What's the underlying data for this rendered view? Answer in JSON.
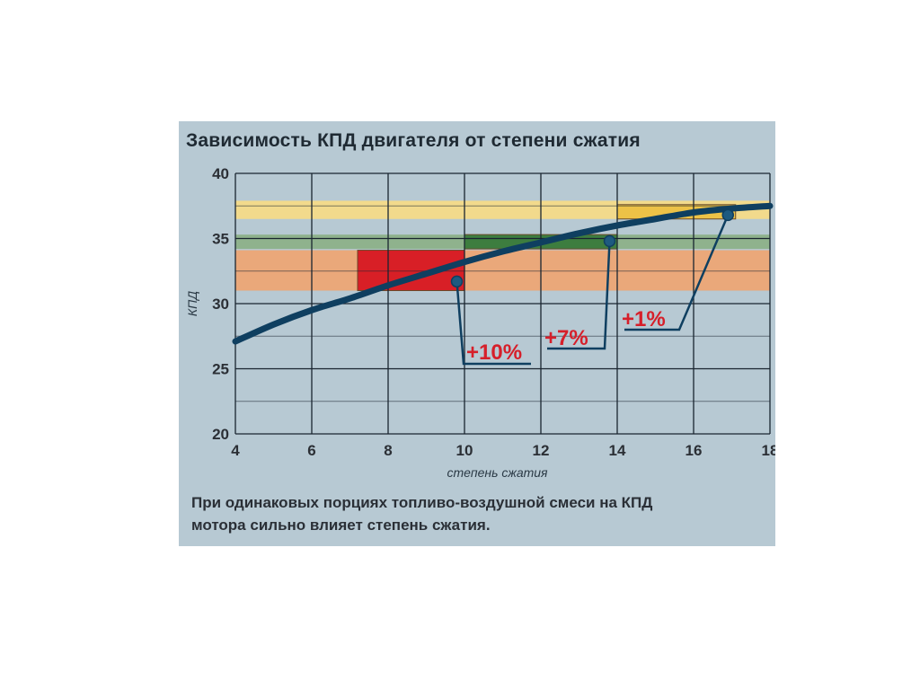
{
  "chart_data": {
    "type": "line",
    "title": "Зависимость КПД двигателя от степени сжатия",
    "xlabel": "степень сжатия",
    "ylabel": "КПД",
    "xlim": [
      4,
      18
    ],
    "ylim": [
      20,
      40
    ],
    "x_ticks": [
      "4",
      "6",
      "8",
      "10",
      "12",
      "14",
      "16",
      "18"
    ],
    "y_ticks": [
      "20",
      "25",
      "30",
      "35",
      "40"
    ],
    "grid": true,
    "curve": {
      "x": [
        4,
        5,
        6,
        7,
        8,
        9,
        10,
        11,
        12,
        13,
        14,
        15,
        16,
        17,
        18
      ],
      "y": [
        27.1,
        28.4,
        29.5,
        30.4,
        31.4,
        32.3,
        33.2,
        34.0,
        34.7,
        35.4,
        36.0,
        36.5,
        37.0,
        37.3,
        37.5
      ]
    },
    "bands": [
      {
        "name": "yellow",
        "y": [
          36.5,
          37.9
        ],
        "color": "#f2da8c"
      },
      {
        "name": "green",
        "y": [
          34.2,
          35.3
        ],
        "color": "#8fb28d"
      },
      {
        "name": "orange",
        "y": [
          31.0,
          34.1
        ],
        "color": "#eaa87a"
      }
    ],
    "highlights": [
      {
        "x": [
          7.2,
          10.0
        ],
        "y": [
          31.0,
          34.1
        ],
        "color": "#d81f26"
      },
      {
        "x": [
          10.0,
          14.0
        ],
        "y": [
          34.2,
          35.3
        ],
        "color": "#3d7d3f"
      },
      {
        "x": [
          14.0,
          17.1
        ],
        "y": [
          36.5,
          37.6
        ],
        "color": "#edc247"
      }
    ],
    "annotations": [
      {
        "text": "+10%",
        "point": [
          9.8,
          31.7
        ]
      },
      {
        "text": "+7%",
        "point": [
          13.8,
          34.8
        ]
      },
      {
        "text": "+1%",
        "point": [
          16.9,
          36.8
        ]
      }
    ],
    "colors": {
      "curve": "#0f3f60",
      "grid": "#1a2530",
      "background": "#b7c9d3",
      "annotation": "#d61f2a"
    }
  },
  "caption": {
    "line1": "При одинаковых порциях топливо-воздушной смеси на КПД",
    "line2": "мотора сильно влияет степень сжатия."
  }
}
